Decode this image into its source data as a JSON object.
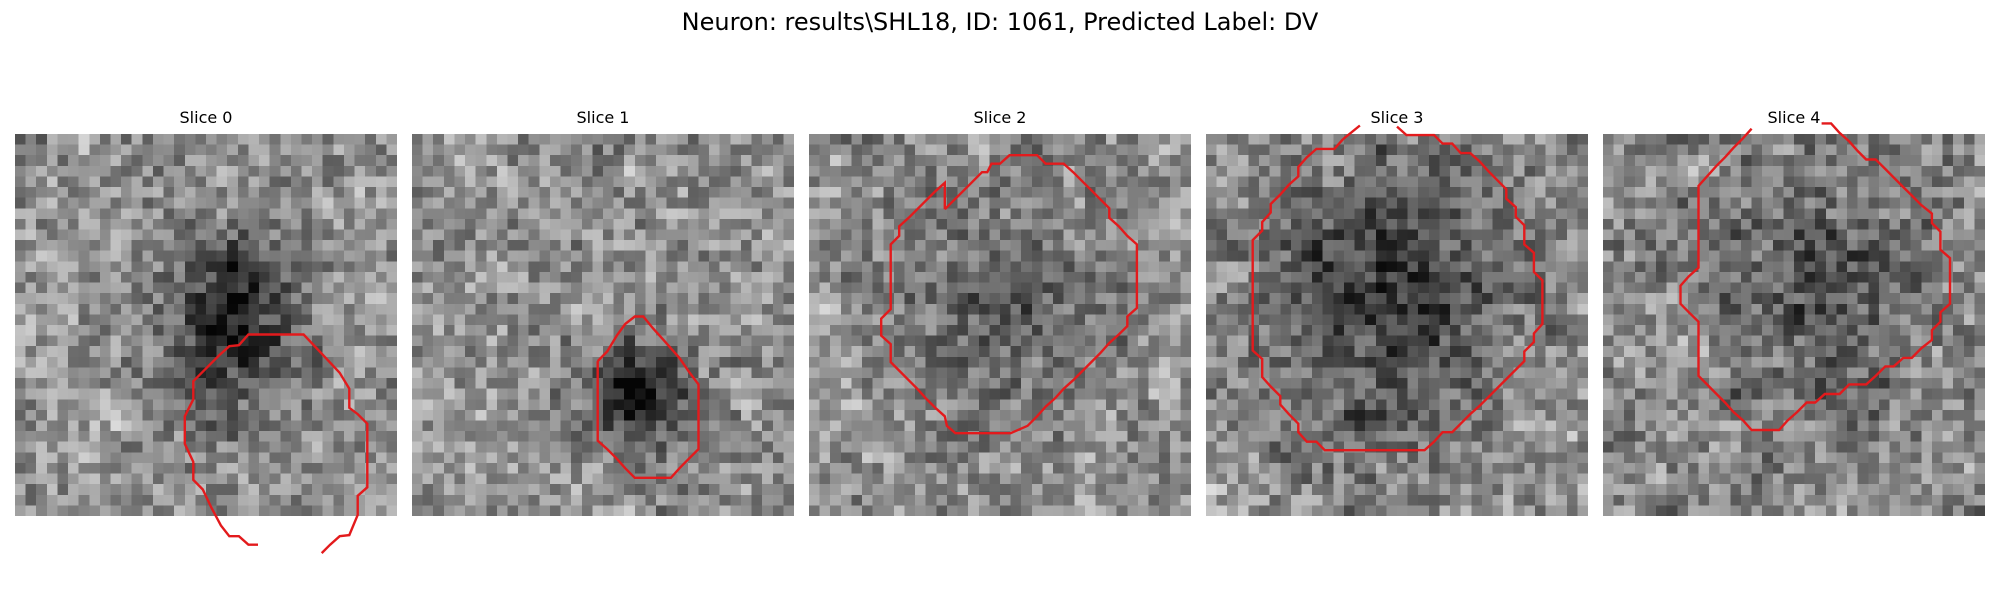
{
  "figure": {
    "title": "Neuron: results\\SHL18, ID: 1061, Predicted Label: DV"
  },
  "contour_color": "#e31a1c",
  "colormap": "gray",
  "panels": [
    {
      "title": "Slice 0",
      "contour_segments": [
        [
          [
            22.9,
            38.7
          ],
          [
            22,
            38.7
          ],
          [
            21.1,
            37.9
          ],
          [
            20.2,
            37.9
          ],
          [
            19.4,
            36.9
          ],
          [
            18.5,
            35.2
          ],
          [
            17.7,
            33.5
          ],
          [
            16.8,
            32.6
          ],
          [
            16.8,
            30.9
          ],
          [
            16.0,
            29.2
          ],
          [
            16.0,
            26.6
          ],
          [
            16.8,
            25.0
          ],
          [
            16.8,
            23.3
          ],
          [
            18.5,
            21.6
          ],
          [
            19.3,
            20.8
          ],
          [
            20.2,
            20.0
          ],
          [
            21.1,
            19.9
          ],
          [
            22.0,
            18.9
          ],
          [
            26.4,
            18.9
          ],
          [
            27.2,
            18.9
          ],
          [
            29.0,
            20.8
          ],
          [
            30.6,
            22.5
          ],
          [
            31.5,
            24.0
          ],
          [
            31.5,
            25.8
          ],
          [
            32.3,
            26.4
          ],
          [
            33.2,
            27.3
          ],
          [
            33.2,
            33.3
          ],
          [
            32.3,
            34.1
          ],
          [
            32.3,
            35.9
          ],
          [
            31.5,
            37.8
          ],
          [
            30.6,
            37.9
          ],
          [
            29.7,
            38.7
          ],
          [
            28.9,
            39.5
          ]
        ]
      ]
    },
    {
      "title": "Slice 1",
      "contour_segments": [
        [
          [
            17.5,
            21.4
          ],
          [
            18.4,
            20.5
          ],
          [
            19.3,
            19.0
          ],
          [
            20.1,
            17.9
          ],
          [
            21.0,
            17.2
          ],
          [
            21.8,
            17.2
          ],
          [
            22.7,
            18.3
          ],
          [
            23.7,
            19.4
          ],
          [
            24.4,
            20.2
          ],
          [
            25.2,
            21.1
          ],
          [
            26.1,
            22.4
          ],
          [
            27.0,
            23.6
          ],
          [
            27.0,
            29.7
          ],
          [
            26.1,
            30.6
          ],
          [
            25.2,
            31.5
          ],
          [
            24.4,
            32.4
          ],
          [
            21.0,
            32.4
          ],
          [
            20.1,
            31.5
          ],
          [
            19.3,
            30.6
          ],
          [
            18.4,
            29.7
          ],
          [
            17.5,
            28.9
          ],
          [
            17.5,
            21.4
          ]
        ]
      ]
    },
    {
      "title": "Slice 2",
      "contour_segments": [
        [
          [
            12.8,
            7.1
          ],
          [
            13.6,
            6.3
          ],
          [
            14.5,
            5.4
          ],
          [
            15.4,
            4.5
          ],
          [
            16.3,
            3.6
          ],
          [
            16.8,
            3.6
          ],
          [
            17.2,
            2.8
          ],
          [
            18.0,
            2.8
          ],
          [
            18.9,
            2.0
          ],
          [
            21.5,
            2.0
          ],
          [
            22.3,
            2.8
          ],
          [
            24.0,
            2.8
          ],
          [
            24.9,
            3.6
          ],
          [
            25.8,
            4.5
          ],
          [
            26.6,
            5.3
          ],
          [
            27.5,
            6.2
          ],
          [
            28.3,
            7.0
          ],
          [
            28.3,
            7.9
          ],
          [
            29.2,
            8.7
          ],
          [
            30.0,
            9.6
          ],
          [
            30.9,
            10.4
          ],
          [
            30.9,
            16.4
          ],
          [
            30.0,
            17.2
          ],
          [
            30.0,
            18.1
          ],
          [
            29.2,
            18.9
          ],
          [
            28.3,
            19.7
          ],
          [
            27.5,
            20.6
          ],
          [
            26.6,
            21.5
          ],
          [
            25.8,
            22.3
          ],
          [
            24.9,
            23.2
          ],
          [
            24.0,
            24.0
          ],
          [
            23.2,
            24.9
          ],
          [
            22.3,
            25.7
          ],
          [
            21.5,
            26.6
          ],
          [
            20.6,
            27.5
          ],
          [
            19.0,
            28.2
          ],
          [
            17.3,
            28.2
          ],
          [
            15.4,
            28.2
          ],
          [
            13.8,
            28.2
          ],
          [
            13.0,
            27.5
          ],
          [
            12.8,
            26.6
          ],
          [
            11.9,
            25.8
          ],
          [
            11.0,
            24.9
          ],
          [
            10.2,
            24.0
          ],
          [
            9.4,
            23.2
          ],
          [
            8.5,
            22.3
          ],
          [
            7.7,
            21.5
          ],
          [
            7.7,
            19.8
          ],
          [
            6.8,
            19.0
          ],
          [
            6.8,
            17.4
          ],
          [
            7.7,
            16.5
          ],
          [
            7.7,
            10.4
          ],
          [
            8.5,
            9.6
          ],
          [
            8.5,
            8.7
          ],
          [
            9.4,
            7.9
          ],
          [
            10.2,
            7.1
          ],
          [
            11.0,
            6.3
          ],
          [
            11.9,
            5.4
          ],
          [
            12.8,
            4.6
          ],
          [
            12.8,
            7.1
          ]
        ]
      ]
    },
    {
      "title": "Slice 3",
      "contour_segments": [
        [
          [
            12.9,
            0.5
          ],
          [
            12.1,
            1.4
          ],
          [
            10.4,
            1.4
          ],
          [
            9.5,
            2.2
          ],
          [
            8.7,
            3.1
          ],
          [
            8.7,
            4.0
          ],
          [
            7.8,
            4.8
          ],
          [
            7.0,
            5.7
          ],
          [
            6.1,
            6.6
          ],
          [
            6.1,
            7.4
          ],
          [
            5.3,
            8.3
          ],
          [
            5.3,
            9.1
          ],
          [
            4.4,
            10.0
          ],
          [
            4.4,
            20.4
          ],
          [
            5.3,
            21.2
          ],
          [
            5.3,
            22.9
          ],
          [
            6.1,
            23.8
          ],
          [
            7.0,
            24.7
          ],
          [
            7.0,
            25.5
          ],
          [
            7.8,
            26.4
          ],
          [
            8.7,
            27.3
          ],
          [
            8.7,
            28.1
          ],
          [
            9.5,
            29.0
          ],
          [
            10.4,
            29.0
          ],
          [
            11.2,
            29.8
          ],
          [
            20.6,
            29.8
          ],
          [
            21.5,
            29.0
          ],
          [
            22.3,
            28.1
          ],
          [
            23.2,
            28.1
          ],
          [
            24.0,
            27.3
          ],
          [
            24.9,
            26.4
          ],
          [
            25.8,
            25.6
          ],
          [
            26.6,
            24.8
          ],
          [
            27.5,
            23.9
          ],
          [
            28.3,
            23.1
          ],
          [
            29.2,
            22.2
          ],
          [
            30.0,
            21.4
          ],
          [
            30.0,
            20.5
          ],
          [
            30.9,
            19.6
          ],
          [
            30.9,
            18.8
          ],
          [
            31.7,
            17.9
          ],
          [
            31.7,
            13.8
          ],
          [
            30.9,
            13.0
          ],
          [
            30.9,
            11.2
          ],
          [
            30.0,
            10.4
          ],
          [
            30.0,
            8.6
          ],
          [
            29.2,
            7.8
          ],
          [
            29.2,
            6.9
          ],
          [
            28.3,
            6.1
          ],
          [
            28.3,
            5.2
          ],
          [
            27.5,
            4.4
          ],
          [
            26.6,
            3.5
          ],
          [
            25.8,
            2.6
          ],
          [
            24.9,
            1.8
          ],
          [
            24.0,
            1.8
          ],
          [
            23.2,
            0.9
          ],
          [
            22.3,
            0.9
          ],
          [
            21.5,
            0.1
          ],
          [
            18.9,
            0.1
          ],
          [
            18.0,
            -0.7
          ]
        ],
        [
          [
            12.9,
            0.5
          ],
          [
            14.5,
            -0.8
          ]
        ]
      ]
    },
    {
      "title": "Slice 4",
      "contour_segments": [
        [
          [
            14.0,
            -0.5
          ],
          [
            13.2,
            0.4
          ],
          [
            12.3,
            1.3
          ],
          [
            11.5,
            2.2
          ],
          [
            10.7,
            3.0
          ],
          [
            9.8,
            4.0
          ],
          [
            9.0,
            4.9
          ],
          [
            9.0,
            12.6
          ],
          [
            8.1,
            13.4
          ],
          [
            7.3,
            14.3
          ],
          [
            7.3,
            16.0
          ],
          [
            8.1,
            16.8
          ],
          [
            9.0,
            17.7
          ],
          [
            9.0,
            22.8
          ],
          [
            9.8,
            23.6
          ],
          [
            10.7,
            24.5
          ],
          [
            11.5,
            25.3
          ],
          [
            12.3,
            26.2
          ],
          [
            13.2,
            27.0
          ],
          [
            14.0,
            27.9
          ],
          [
            16.6,
            27.9
          ],
          [
            17.4,
            27.0
          ],
          [
            18.3,
            26.2
          ],
          [
            19.2,
            25.3
          ],
          [
            20.0,
            25.3
          ],
          [
            20.9,
            24.5
          ],
          [
            22.3,
            24.5
          ],
          [
            23.2,
            23.6
          ],
          [
            24.8,
            23.6
          ],
          [
            25.7,
            22.8
          ],
          [
            26.6,
            21.9
          ],
          [
            27.4,
            21.9
          ],
          [
            28.3,
            21.1
          ],
          [
            29.1,
            21.1
          ],
          [
            30.0,
            20.2
          ],
          [
            31.0,
            19.4
          ],
          [
            31.0,
            18.5
          ],
          [
            31.8,
            17.7
          ],
          [
            31.8,
            16.8
          ],
          [
            32.7,
            16.0
          ],
          [
            32.7,
            11.7
          ],
          [
            31.8,
            10.9
          ],
          [
            31.8,
            9.2
          ],
          [
            31.0,
            8.4
          ],
          [
            31.0,
            7.5
          ],
          [
            30.0,
            6.7
          ],
          [
            29.1,
            5.8
          ],
          [
            28.3,
            5.0
          ],
          [
            27.4,
            4.1
          ],
          [
            26.6,
            3.3
          ],
          [
            25.7,
            2.4
          ],
          [
            24.8,
            2.4
          ],
          [
            24.0,
            1.6
          ],
          [
            23.2,
            0.7
          ],
          [
            22.3,
            -0.1
          ],
          [
            21.5,
            -1.0
          ],
          [
            20.6,
            -1.0
          ]
        ]
      ]
    }
  ]
}
